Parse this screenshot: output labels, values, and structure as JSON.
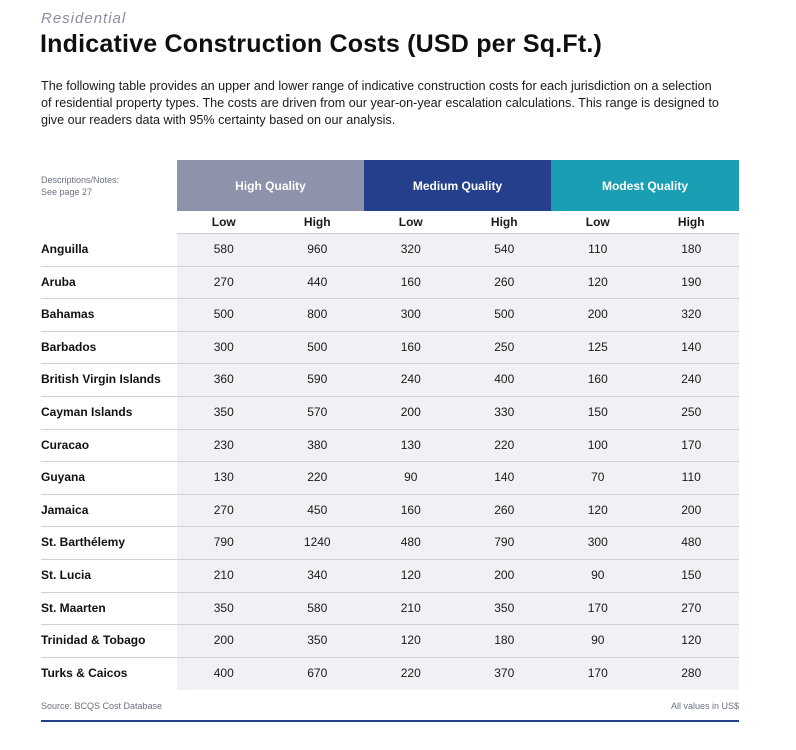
{
  "section_label": "Residential",
  "title": "Indicative Construction Costs (USD per Sq.Ft.)",
  "intro": "The following table provides an upper and lower range of indicative construction costs for each jurisdiction on a selection of residential property types. The costs are driven from our year-on-year escalation calculations. This range is designed to give our readers data with 95% certainty based on our analysis.",
  "notes": {
    "line1": "Descriptions/Notes:",
    "line2": "See page 27"
  },
  "groups": [
    {
      "label": "High Quality",
      "color": "#8e92ab"
    },
    {
      "label": "Medium Quality",
      "color": "#243f8b"
    },
    {
      "label": "Modest Quality",
      "color": "#1a9eb4"
    }
  ],
  "subheaders": [
    "Low",
    "High",
    "Low",
    "High",
    "Low",
    "High"
  ],
  "rows": [
    {
      "name": "Anguilla",
      "values": [
        "580",
        "960",
        "320",
        "540",
        "110",
        "180"
      ]
    },
    {
      "name": "Aruba",
      "values": [
        "270",
        "440",
        "160",
        "260",
        "120",
        "190"
      ]
    },
    {
      "name": "Bahamas",
      "values": [
        "500",
        "800",
        "300",
        "500",
        "200",
        "320"
      ]
    },
    {
      "name": "Barbados",
      "values": [
        "300",
        "500",
        "160",
        "250",
        "125",
        "140"
      ]
    },
    {
      "name": "British Virgin Islands",
      "values": [
        "360",
        "590",
        "240",
        "400",
        "160",
        "240"
      ]
    },
    {
      "name": "Cayman Islands",
      "values": [
        "350",
        "570",
        "200",
        "330",
        "150",
        "250"
      ]
    },
    {
      "name": "Curacao",
      "values": [
        "230",
        "380",
        "130",
        "220",
        "100",
        "170"
      ]
    },
    {
      "name": "Guyana",
      "values": [
        "130",
        "220",
        "90",
        "140",
        "70",
        "110"
      ]
    },
    {
      "name": "Jamaica",
      "values": [
        "270",
        "450",
        "160",
        "260",
        "120",
        "200"
      ]
    },
    {
      "name": "St. Barthélemy",
      "values": [
        "790",
        "1240",
        "480",
        "790",
        "300",
        "480"
      ]
    },
    {
      "name": "St. Lucia",
      "values": [
        "210",
        "340",
        "120",
        "200",
        "90",
        "150"
      ]
    },
    {
      "name": "St. Maarten",
      "values": [
        "350",
        "580",
        "210",
        "350",
        "170",
        "270"
      ]
    },
    {
      "name": "Trinidad & Tobago",
      "values": [
        "200",
        "350",
        "120",
        "180",
        "90",
        "120"
      ]
    },
    {
      "name": "Turks & Caicos",
      "values": [
        "400",
        "670",
        "220",
        "370",
        "170",
        "280"
      ]
    }
  ],
  "footer": {
    "source": "Source: BCQS Cost Database",
    "units": "All values in US$"
  }
}
